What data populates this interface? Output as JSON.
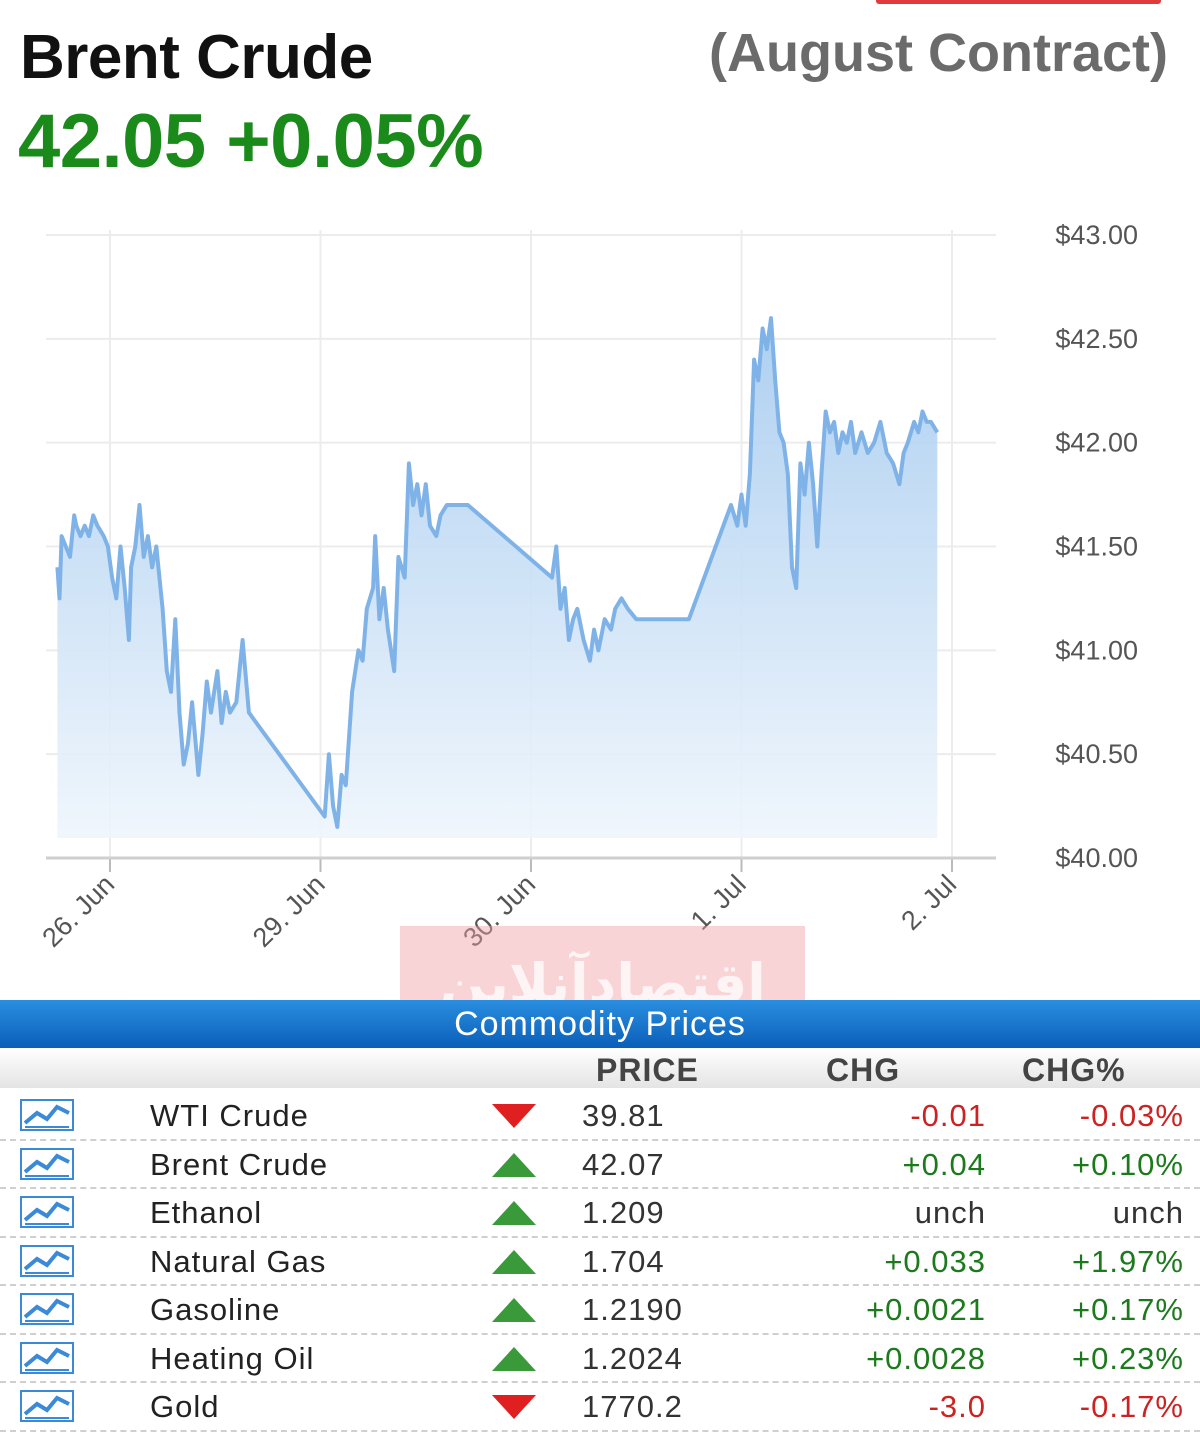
{
  "header": {
    "title": "Brent Crude",
    "contract": "(August Contract)",
    "quote": "42.05 +0.05%"
  },
  "chart_data": {
    "type": "area",
    "title": "",
    "xlabel": "",
    "ylabel": "",
    "ylim": [
      40,
      43
    ],
    "y_ticks": [
      "$43.00",
      "$42.50",
      "$42.00",
      "$41.50",
      "$41.00",
      "$40.50",
      "$40.00"
    ],
    "y_tick_values": [
      43,
      42.5,
      42,
      41.5,
      41,
      40.5,
      40
    ],
    "x_ticks": [
      "26. Jun",
      "29. Jun",
      "30. Jun",
      "1. Jul",
      "2. Jul"
    ],
    "x_tick_positions": [
      0,
      1,
      2,
      3,
      4
    ],
    "xlim": [
      -0.3,
      4.0
    ],
    "grid": true,
    "series": [
      {
        "color": "#7fb3e8",
        "points": [
          [
            -0.25,
            41.4
          ],
          [
            -0.24,
            41.25
          ],
          [
            -0.23,
            41.55
          ],
          [
            -0.21,
            41.5
          ],
          [
            -0.19,
            41.45
          ],
          [
            -0.17,
            41.65
          ],
          [
            -0.16,
            41.6
          ],
          [
            -0.14,
            41.55
          ],
          [
            -0.12,
            41.6
          ],
          [
            -0.1,
            41.55
          ],
          [
            -0.08,
            41.65
          ],
          [
            -0.06,
            41.6
          ],
          [
            -0.03,
            41.55
          ],
          [
            -0.01,
            41.5
          ],
          [
            0.01,
            41.35
          ],
          [
            0.03,
            41.25
          ],
          [
            0.05,
            41.5
          ],
          [
            0.07,
            41.3
          ],
          [
            0.09,
            41.05
          ],
          [
            0.1,
            41.4
          ],
          [
            0.12,
            41.5
          ],
          [
            0.14,
            41.7
          ],
          [
            0.16,
            41.45
          ],
          [
            0.18,
            41.55
          ],
          [
            0.2,
            41.4
          ],
          [
            0.22,
            41.5
          ],
          [
            0.25,
            41.2
          ],
          [
            0.27,
            40.9
          ],
          [
            0.29,
            40.8
          ],
          [
            0.31,
            41.15
          ],
          [
            0.33,
            40.7
          ],
          [
            0.35,
            40.45
          ],
          [
            0.37,
            40.55
          ],
          [
            0.39,
            40.75
          ],
          [
            0.42,
            40.4
          ],
          [
            0.44,
            40.6
          ],
          [
            0.46,
            40.85
          ],
          [
            0.48,
            40.7
          ],
          [
            0.51,
            40.9
          ],
          [
            0.53,
            40.65
          ],
          [
            0.55,
            40.8
          ],
          [
            0.57,
            40.7
          ],
          [
            0.6,
            40.75
          ],
          [
            0.63,
            41.05
          ],
          [
            0.66,
            40.7
          ],
          [
            1.02,
            40.2
          ],
          [
            1.04,
            40.5
          ],
          [
            1.06,
            40.25
          ],
          [
            1.08,
            40.15
          ],
          [
            1.1,
            40.4
          ],
          [
            1.12,
            40.35
          ],
          [
            1.15,
            40.8
          ],
          [
            1.18,
            41.0
          ],
          [
            1.2,
            40.95
          ],
          [
            1.22,
            41.2
          ],
          [
            1.25,
            41.3
          ],
          [
            1.26,
            41.55
          ],
          [
            1.28,
            41.15
          ],
          [
            1.3,
            41.3
          ],
          [
            1.32,
            41.1
          ],
          [
            1.35,
            40.9
          ],
          [
            1.37,
            41.45
          ],
          [
            1.4,
            41.35
          ],
          [
            1.42,
            41.9
          ],
          [
            1.44,
            41.7
          ],
          [
            1.46,
            41.8
          ],
          [
            1.48,
            41.65
          ],
          [
            1.5,
            41.8
          ],
          [
            1.52,
            41.6
          ],
          [
            1.55,
            41.55
          ],
          [
            1.57,
            41.65
          ],
          [
            1.6,
            41.7
          ],
          [
            1.7,
            41.7
          ],
          [
            2.1,
            41.35
          ],
          [
            2.12,
            41.5
          ],
          [
            2.14,
            41.2
          ],
          [
            2.16,
            41.3
          ],
          [
            2.18,
            41.05
          ],
          [
            2.2,
            41.15
          ],
          [
            2.22,
            41.2
          ],
          [
            2.25,
            41.05
          ],
          [
            2.28,
            40.95
          ],
          [
            2.3,
            41.1
          ],
          [
            2.32,
            41.0
          ],
          [
            2.35,
            41.15
          ],
          [
            2.38,
            41.1
          ],
          [
            2.4,
            41.2
          ],
          [
            2.43,
            41.25
          ],
          [
            2.46,
            41.2
          ],
          [
            2.5,
            41.15
          ],
          [
            2.75,
            41.15
          ],
          [
            2.95,
            41.7
          ],
          [
            2.98,
            41.6
          ],
          [
            3.0,
            41.75
          ],
          [
            3.02,
            41.6
          ],
          [
            3.04,
            41.85
          ],
          [
            3.06,
            42.4
          ],
          [
            3.08,
            42.3
          ],
          [
            3.1,
            42.55
          ],
          [
            3.12,
            42.45
          ],
          [
            3.14,
            42.6
          ],
          [
            3.16,
            42.3
          ],
          [
            3.18,
            42.05
          ],
          [
            3.2,
            42.0
          ],
          [
            3.22,
            41.85
          ],
          [
            3.24,
            41.4
          ],
          [
            3.26,
            41.3
          ],
          [
            3.28,
            41.9
          ],
          [
            3.3,
            41.75
          ],
          [
            3.32,
            42.0
          ],
          [
            3.34,
            41.8
          ],
          [
            3.36,
            41.5
          ],
          [
            3.38,
            41.85
          ],
          [
            3.4,
            42.15
          ],
          [
            3.42,
            42.05
          ],
          [
            3.44,
            42.1
          ],
          [
            3.46,
            41.95
          ],
          [
            3.48,
            42.05
          ],
          [
            3.5,
            42.0
          ],
          [
            3.52,
            42.1
          ],
          [
            3.54,
            41.95
          ],
          [
            3.57,
            42.05
          ],
          [
            3.6,
            41.95
          ],
          [
            3.63,
            42.0
          ],
          [
            3.66,
            42.1
          ],
          [
            3.69,
            41.95
          ],
          [
            3.72,
            41.9
          ],
          [
            3.75,
            41.8
          ],
          [
            3.77,
            41.95
          ],
          [
            3.79,
            42.0
          ],
          [
            3.82,
            42.1
          ],
          [
            3.84,
            42.05
          ],
          [
            3.86,
            42.15
          ],
          [
            3.88,
            42.1
          ],
          [
            3.9,
            42.1
          ],
          [
            3.93,
            42.05
          ]
        ]
      }
    ]
  },
  "watermark": {
    "text": "اقتصادآنلاین"
  },
  "table": {
    "caption": "Commodity Prices",
    "columns": {
      "price": "PRICE",
      "chg": "CHG",
      "chg_pct": "CHG%"
    },
    "rows": [
      {
        "name": "WTI Crude",
        "direction": "down",
        "price": "39.81",
        "chg": "-0.01",
        "chg_pct": "-0.03%"
      },
      {
        "name": "Brent Crude",
        "direction": "up",
        "price": "42.07",
        "chg": "+0.04",
        "chg_pct": "+0.10%"
      },
      {
        "name": "Ethanol",
        "direction": "up",
        "price": "1.209",
        "chg": "unch",
        "chg_pct": "unch"
      },
      {
        "name": "Natural Gas",
        "direction": "up",
        "price": "1.704",
        "chg": "+0.033",
        "chg_pct": "+1.97%"
      },
      {
        "name": "Gasoline",
        "direction": "up",
        "price": "1.2190",
        "chg": "+0.0021",
        "chg_pct": "+0.17%"
      },
      {
        "name": "Heating Oil",
        "direction": "up",
        "price": "1.2024",
        "chg": "+0.0028",
        "chg_pct": "+0.23%"
      },
      {
        "name": "Gold",
        "direction": "down",
        "price": "1770.2",
        "chg": "-3.0",
        "chg_pct": "-0.17%"
      }
    ],
    "colors": {
      "up": "#3a9a3a",
      "down": "#e02020",
      "icon": "#3a8ad8"
    },
    "row_icon": "chart-icon"
  }
}
